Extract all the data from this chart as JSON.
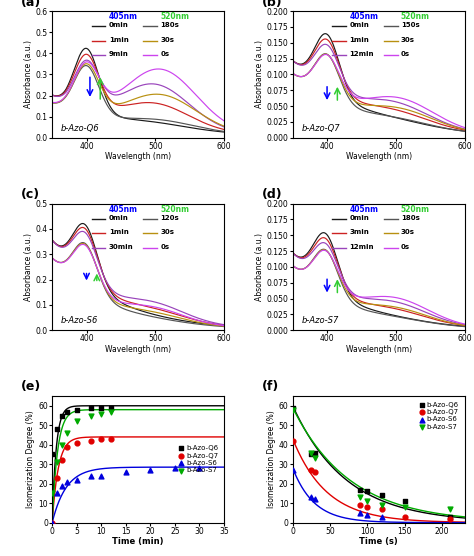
{
  "panel_a": {
    "title": "b-Azo-Q6",
    "label": "(a)",
    "ylim": [
      0.0,
      0.6
    ],
    "xlim": [
      350,
      600
    ],
    "irr_405_labels": [
      "0min",
      "1min",
      "9min"
    ],
    "irr_520_labels": [
      "180s",
      "30s",
      "0s"
    ]
  },
  "panel_b": {
    "title": "b-Azo-Q7",
    "label": "(b)",
    "ylim": [
      0.0,
      0.2
    ],
    "xlim": [
      350,
      600
    ],
    "irr_405_labels": [
      "0min",
      "1min",
      "12min"
    ],
    "irr_520_labels": [
      "150s",
      "30s",
      "0s"
    ]
  },
  "panel_c": {
    "title": "b-Azo-S6",
    "label": "(c)",
    "ylim": [
      0.0,
      0.5
    ],
    "xlim": [
      350,
      600
    ],
    "irr_405_labels": [
      "0min",
      "1min",
      "30min"
    ],
    "irr_520_labels": [
      "120s",
      "30s",
      "0s"
    ]
  },
  "panel_d": {
    "title": "b-Azo-S7",
    "label": "(d)",
    "ylim": [
      0.0,
      0.2
    ],
    "xlim": [
      350,
      600
    ],
    "irr_405_labels": [
      "0min",
      "3min",
      "12min"
    ],
    "irr_520_labels": [
      "180s",
      "30s",
      "0s"
    ]
  },
  "panel_e": {
    "label": "(e)",
    "xlabel": "Time (min)",
    "ylabel": "Isomerization Degree (%)",
    "xlim": [
      0,
      35
    ],
    "ylim": [
      0,
      65
    ],
    "yticks": [
      0,
      10,
      20,
      30,
      40,
      50,
      60
    ],
    "series": [
      {
        "name": "b-Azo-Q6",
        "color": "#000000",
        "marker": "s",
        "x": [
          0,
          1,
          2,
          3,
          5,
          8,
          10,
          12
        ],
        "y": [
          35,
          48,
          55,
          57,
          58,
          59,
          59,
          59
        ],
        "fit_a": 60.0,
        "fit_b": 1.2
      },
      {
        "name": "b-Azo-Q7",
        "color": "#e00000",
        "marker": "o",
        "x": [
          0,
          1,
          2,
          3,
          5,
          8,
          10,
          12
        ],
        "y": [
          0,
          23,
          32,
          39,
          41,
          42,
          43,
          43
        ],
        "fit_a": 44.0,
        "fit_b": 0.8
      },
      {
        "name": "b-Azo-S6",
        "color": "#0000dd",
        "marker": "^",
        "x": [
          0,
          1,
          2,
          3,
          5,
          8,
          10,
          15,
          20,
          25,
          30
        ],
        "y": [
          0,
          15,
          19,
          21,
          22,
          24,
          24,
          26,
          27,
          28,
          28
        ],
        "fit_a": 28.5,
        "fit_b": 0.35
      },
      {
        "name": "b-Azo-S7",
        "color": "#00aa00",
        "marker": "v",
        "x": [
          0,
          1,
          2,
          3,
          5,
          8,
          10,
          12
        ],
        "y": [
          15,
          31,
          40,
          46,
          52,
          55,
          56,
          57
        ],
        "fit_a": 58.0,
        "fit_b": 0.9
      }
    ]
  },
  "panel_f": {
    "label": "(f)",
    "xlabel": "Time (s)",
    "ylabel": "Isomerization Degree (%)",
    "xlim": [
      0,
      230
    ],
    "ylim": [
      0,
      65
    ],
    "yticks": [
      0,
      10,
      20,
      30,
      40,
      50,
      60
    ],
    "series": [
      {
        "name": "b-Azo-Q6",
        "color": "#000000",
        "marker": "s",
        "x": [
          0,
          25,
          30,
          90,
          100,
          120,
          150,
          210
        ],
        "y": [
          59,
          35,
          36,
          17,
          16,
          14,
          11,
          3
        ],
        "fit_a": 60.0,
        "fit_b": 0.014
      },
      {
        "name": "b-Azo-Q7",
        "color": "#e00000",
        "marker": "o",
        "x": [
          0,
          25,
          30,
          90,
          100,
          120,
          150,
          210
        ],
        "y": [
          42,
          27,
          26,
          9,
          8,
          7,
          3,
          2
        ],
        "fit_a": 43.0,
        "fit_b": 0.022
      },
      {
        "name": "b-Azo-S6",
        "color": "#0000dd",
        "marker": "^",
        "x": [
          0,
          25,
          30,
          90,
          100,
          120
        ],
        "y": [
          27,
          13,
          12,
          5,
          4,
          3
        ],
        "fit_a": 28.0,
        "fit_b": 0.035
      },
      {
        "name": "b-Azo-S7",
        "color": "#00aa00",
        "marker": "v",
        "x": [
          0,
          25,
          30,
          90,
          100,
          120,
          150,
          210
        ],
        "y": [
          58,
          36,
          33,
          13,
          11,
          9,
          8,
          7
        ],
        "fit_a": 59.0,
        "fit_b": 0.013
      }
    ]
  },
  "colors_405": [
    "#1a1a1a",
    "#cc2222",
    "#9944bb"
  ],
  "colors_520": [
    "#555555",
    "#b89010",
    "#cc44ee"
  ],
  "bg_color": "#ffffff"
}
